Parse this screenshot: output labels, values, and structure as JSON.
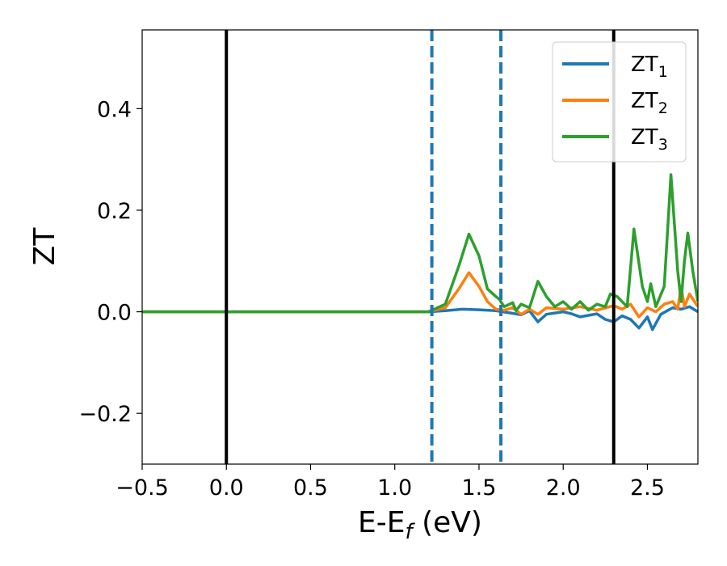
{
  "chart_data": {
    "type": "line",
    "xlabel": "E-E",
    "xlabel_sub": "f",
    "xlabel_unit": " (eV)",
    "ylabel": "ZT",
    "xlim": [
      -0.5,
      2.8
    ],
    "ylim": [
      -0.3,
      0.555
    ],
    "xticks": [
      -0.5,
      0.0,
      0.5,
      1.0,
      1.5,
      2.0,
      2.5
    ],
    "xtick_labels": [
      "−0.5",
      "0.0",
      "0.5",
      "1.0",
      "1.5",
      "2.0",
      "2.5"
    ],
    "yticks": [
      -0.2,
      0.0,
      0.2,
      0.4
    ],
    "ytick_labels": [
      "−0.2",
      "0.0",
      "0.2",
      "0.4"
    ],
    "grid": false,
    "legend_position": "top-right",
    "vertical_lines": [
      {
        "x": 0.0,
        "style": "solid",
        "color": "#000000"
      },
      {
        "x": 2.3,
        "style": "solid",
        "color": "#000000"
      },
      {
        "x": 1.22,
        "style": "dashed",
        "color": "#1f77b4"
      },
      {
        "x": 1.63,
        "style": "dashed",
        "color": "#1f77b4"
      }
    ],
    "series": [
      {
        "name": "ZT",
        "name_sub": "1",
        "color": "#1f77b4",
        "points": [
          [
            -0.5,
            0
          ],
          [
            1.2,
            0
          ],
          [
            1.3,
            0.002
          ],
          [
            1.4,
            0.005
          ],
          [
            1.5,
            0.004
          ],
          [
            1.6,
            0.002
          ],
          [
            1.7,
            -0.003
          ],
          [
            1.75,
            -0.006
          ],
          [
            1.8,
            0.002
          ],
          [
            1.85,
            -0.02
          ],
          [
            1.9,
            -0.005
          ],
          [
            2.0,
            0
          ],
          [
            2.05,
            -0.004
          ],
          [
            2.1,
            -0.01
          ],
          [
            2.2,
            -0.004
          ],
          [
            2.25,
            -0.015
          ],
          [
            2.3,
            -0.02
          ],
          [
            2.35,
            -0.008
          ],
          [
            2.4,
            -0.015
          ],
          [
            2.45,
            -0.032
          ],
          [
            2.5,
            -0.01
          ],
          [
            2.53,
            -0.035
          ],
          [
            2.58,
            -0.005
          ],
          [
            2.65,
            0.008
          ],
          [
            2.7,
            0.005
          ],
          [
            2.75,
            0.01
          ],
          [
            2.8,
            0
          ]
        ]
      },
      {
        "name": "ZT",
        "name_sub": "2",
        "color": "#ff7f0e",
        "points": [
          [
            -0.5,
            0
          ],
          [
            1.2,
            0
          ],
          [
            1.3,
            0.008
          ],
          [
            1.38,
            0.045
          ],
          [
            1.44,
            0.077
          ],
          [
            1.5,
            0.05
          ],
          [
            1.55,
            0.02
          ],
          [
            1.6,
            0.005
          ],
          [
            1.65,
            0.003
          ],
          [
            1.7,
            0.008
          ],
          [
            1.75,
            -0.005
          ],
          [
            1.8,
            0.005
          ],
          [
            1.85,
            -0.005
          ],
          [
            1.9,
            0.008
          ],
          [
            2.0,
            0.005
          ],
          [
            2.1,
            0.01
          ],
          [
            2.2,
            0.003
          ],
          [
            2.3,
            0.012
          ],
          [
            2.35,
            0.005
          ],
          [
            2.4,
            0.015
          ],
          [
            2.45,
            -0.01
          ],
          [
            2.5,
            0.008
          ],
          [
            2.55,
            0
          ],
          [
            2.6,
            0.015
          ],
          [
            2.65,
            0.02
          ],
          [
            2.68,
            0.005
          ],
          [
            2.7,
            0.05
          ],
          [
            2.72,
            0.01
          ],
          [
            2.75,
            0.035
          ],
          [
            2.8,
            0.01
          ]
        ]
      },
      {
        "name": "ZT",
        "name_sub": "3",
        "color": "#2ca02c",
        "points": [
          [
            -0.5,
            0
          ],
          [
            1.2,
            0
          ],
          [
            1.3,
            0.015
          ],
          [
            1.38,
            0.09
          ],
          [
            1.44,
            0.153
          ],
          [
            1.5,
            0.11
          ],
          [
            1.55,
            0.045
          ],
          [
            1.6,
            0.03
          ],
          [
            1.62,
            0.025
          ],
          [
            1.65,
            0.01
          ],
          [
            1.7,
            0.018
          ],
          [
            1.72,
            0.002
          ],
          [
            1.75,
            0.015
          ],
          [
            1.8,
            0.008
          ],
          [
            1.85,
            0.06
          ],
          [
            1.9,
            0.03
          ],
          [
            1.95,
            0.01
          ],
          [
            2.0,
            0.02
          ],
          [
            2.05,
            0.005
          ],
          [
            2.1,
            0.02
          ],
          [
            2.15,
            0.003
          ],
          [
            2.2,
            0.015
          ],
          [
            2.25,
            0.01
          ],
          [
            2.28,
            0.035
          ],
          [
            2.32,
            0.03
          ],
          [
            2.38,
            0.01
          ],
          [
            2.42,
            0.163
          ],
          [
            2.47,
            0.05
          ],
          [
            2.5,
            0.02
          ],
          [
            2.52,
            0.055
          ],
          [
            2.55,
            0.01
          ],
          [
            2.6,
            0.05
          ],
          [
            2.64,
            0.27
          ],
          [
            2.68,
            0.08
          ],
          [
            2.7,
            0.02
          ],
          [
            2.72,
            0.1
          ],
          [
            2.74,
            0.155
          ],
          [
            2.77,
            0.08
          ],
          [
            2.8,
            0.02
          ]
        ]
      }
    ]
  }
}
